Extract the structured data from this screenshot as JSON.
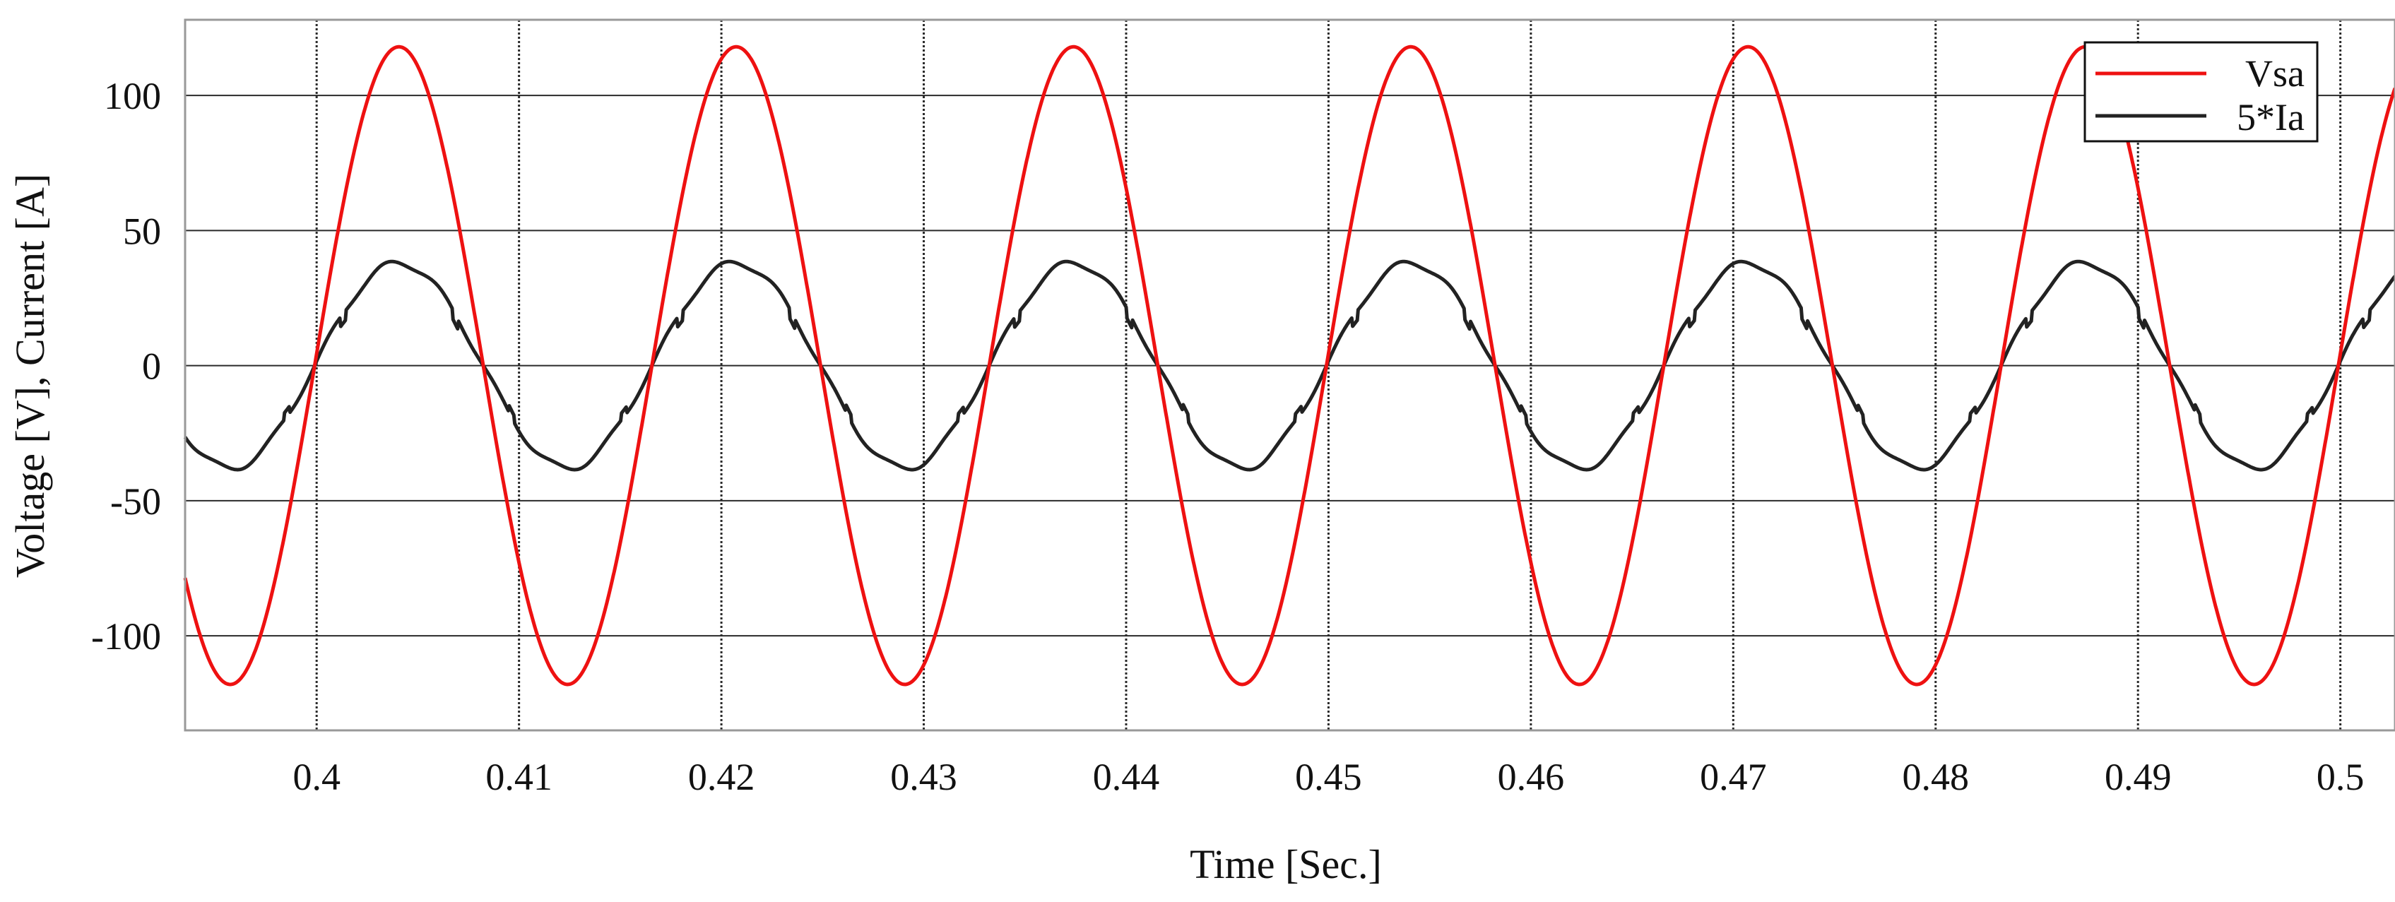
{
  "chart_data": {
    "type": "line",
    "title": "",
    "xlabel": "Time [Sec.]",
    "ylabel": "Voltage [V], Current [A]",
    "xlim": [
      0.3935,
      0.5027
    ],
    "ylim": [
      -135,
      128
    ],
    "grid": true,
    "legend_position": "top-right",
    "x_ticks": [
      0.4,
      0.41,
      0.42,
      0.43,
      0.44,
      0.45,
      0.46,
      0.47,
      0.48,
      0.49,
      0.5
    ],
    "x_tick_labels": [
      "0.4",
      "0.41",
      "0.42",
      "0.43",
      "0.44",
      "0.45",
      "0.46",
      "0.47",
      "0.48",
      "0.49",
      "0.5"
    ],
    "y_ticks": [
      100,
      50,
      0,
      -50,
      -100
    ],
    "y_tick_labels": [
      "100",
      "50",
      "0",
      "-50",
      "-100"
    ],
    "series": [
      {
        "name": "Vsa",
        "color": "#ee1111",
        "waveform": "sine",
        "amplitude": 118,
        "frequency_hz": 60,
        "zero_crossing_rising": 0.3999,
        "x_start": 0.3935,
        "x_end": 0.5027
      },
      {
        "name": "5*Ia",
        "color": "#222222",
        "waveform": "sine-with-notches",
        "amplitude": 38,
        "frequency_hz": 60,
        "zero_crossing_rising": 0.3999,
        "x_start": 0.3935,
        "x_end": 0.5027
      }
    ]
  }
}
